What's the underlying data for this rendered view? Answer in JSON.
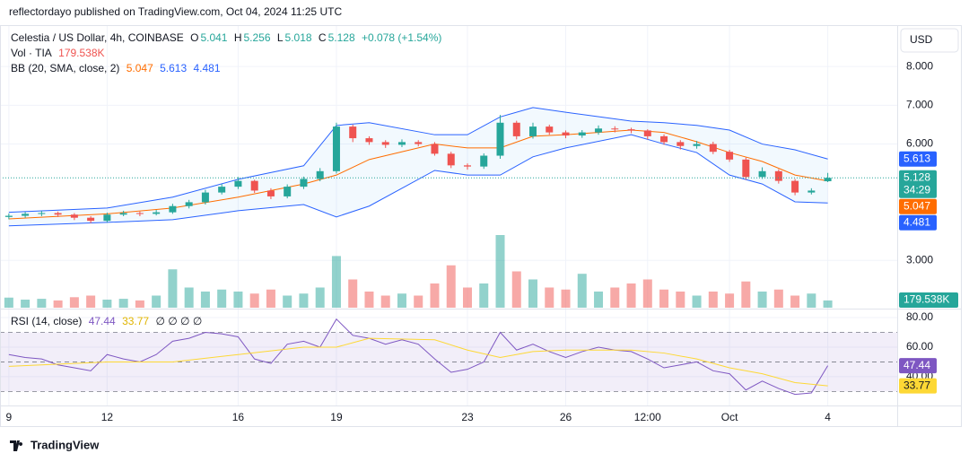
{
  "header": {
    "published": "reflectordayo published on TradingView.com, Oct 04, 2024 11:25 UTC",
    "currency": "USD"
  },
  "footer": {
    "brand": "TradingView"
  },
  "chart_data": {
    "type": "candlestick",
    "title": "Celestia / US Dollar, 4h, COINBASE",
    "ohlc_letters": [
      "O",
      "H",
      "L",
      "C"
    ],
    "change": "+0.078 (+1.54%)",
    "countdown": "34:29",
    "up_color": "#26a69a",
    "down_color": "#ef5350",
    "x": [
      0,
      0.5,
      1,
      1.5,
      2,
      2.5,
      3,
      3.5,
      4,
      4.5,
      5,
      5.5,
      6,
      6.5,
      7,
      7.5,
      8,
      8.5,
      9,
      9.5,
      10,
      10.5,
      11,
      11.5,
      12,
      12.5,
      13,
      13.5,
      14,
      14.5,
      15,
      15.5,
      16,
      16.5,
      17,
      17.5,
      18,
      18.5,
      19,
      19.5,
      20,
      20.5,
      21,
      21.5,
      22,
      22.5,
      23,
      23.5,
      24,
      24.5,
      25
    ],
    "open": [
      4.12,
      4.15,
      4.2,
      4.22,
      4.18,
      4.1,
      4.02,
      4.18,
      4.22,
      4.2,
      4.24,
      4.4,
      4.5,
      4.75,
      4.9,
      5.05,
      4.8,
      4.65,
      4.9,
      5.1,
      5.3,
      6.45,
      6.15,
      6.05,
      5.98,
      6.05,
      6.0,
      5.75,
      5.45,
      5.42,
      5.7,
      6.55,
      6.2,
      6.45,
      6.3,
      6.22,
      6.3,
      6.4,
      6.38,
      6.35,
      6.2,
      6.05,
      5.95,
      6.0,
      5.8,
      5.6,
      5.15,
      5.3,
      5.05,
      4.75,
      5.041
    ],
    "high": [
      4.21,
      4.25,
      4.28,
      4.26,
      4.22,
      4.14,
      4.23,
      4.28,
      4.26,
      4.3,
      4.46,
      4.56,
      4.82,
      4.97,
      5.15,
      5.08,
      4.86,
      4.96,
      5.16,
      5.38,
      6.55,
      6.5,
      6.2,
      6.1,
      6.12,
      6.1,
      6.05,
      5.8,
      5.5,
      5.76,
      6.75,
      6.6,
      6.55,
      6.5,
      6.35,
      6.36,
      6.48,
      6.46,
      6.42,
      6.38,
      6.25,
      6.1,
      6.08,
      6.06,
      5.85,
      5.65,
      5.4,
      5.35,
      5.1,
      4.86,
      5.256
    ],
    "low": [
      4.06,
      4.1,
      4.14,
      4.12,
      4.04,
      3.96,
      3.98,
      4.14,
      4.14,
      4.16,
      4.2,
      4.34,
      4.44,
      4.7,
      4.84,
      4.74,
      4.58,
      4.6,
      4.84,
      5.04,
      5.24,
      6.05,
      5.98,
      5.9,
      5.92,
      5.94,
      5.7,
      5.38,
      5.34,
      5.36,
      5.62,
      6.12,
      6.14,
      6.24,
      6.15,
      6.16,
      6.24,
      6.3,
      6.28,
      6.12,
      5.98,
      5.86,
      5.88,
      5.74,
      5.54,
      5.08,
      5.1,
      4.98,
      4.68,
      4.7,
      5.018
    ],
    "close": [
      4.15,
      4.2,
      4.22,
      4.18,
      4.1,
      4.02,
      4.18,
      4.22,
      4.2,
      4.24,
      4.4,
      4.5,
      4.75,
      4.9,
      5.05,
      4.8,
      4.65,
      4.9,
      5.1,
      5.3,
      6.45,
      6.15,
      6.05,
      5.98,
      6.05,
      6.0,
      5.75,
      5.45,
      5.42,
      5.7,
      6.55,
      6.2,
      6.45,
      6.3,
      6.22,
      6.3,
      6.4,
      6.38,
      6.35,
      6.2,
      6.05,
      5.95,
      6.0,
      5.8,
      5.6,
      5.15,
      5.3,
      5.05,
      4.75,
      4.8,
      5.128
    ],
    "xlim": [
      -0.27,
      27.12
    ],
    "xticks": [
      {
        "value": 0,
        "label": "9"
      },
      {
        "value": 3,
        "label": "12"
      },
      {
        "value": 7,
        "label": "16"
      },
      {
        "value": 10,
        "label": "19"
      },
      {
        "value": 14,
        "label": "23"
      },
      {
        "value": 17,
        "label": "26"
      },
      {
        "value": 19.5,
        "label": "12:00"
      },
      {
        "value": 22,
        "label": "Oct"
      },
      {
        "value": 25,
        "label": "4"
      }
    ],
    "ylim": [
      1.78,
      9.02
    ],
    "yticks": [
      {
        "value": 8,
        "label": "8.000"
      },
      {
        "value": 7,
        "label": "7.000"
      },
      {
        "value": 6,
        "label": "6.000"
      },
      {
        "value": 3,
        "label": "3.000"
      }
    ],
    "grid": true,
    "bb": {
      "label": "BB (20, SMA, close, 2)",
      "fill": "rgba(33,150,243,0.06)",
      "x": [
        0,
        3,
        5,
        7,
        9,
        10,
        11,
        13,
        14,
        15,
        16,
        17,
        19,
        20,
        21,
        22,
        23,
        24,
        25
      ],
      "series": [
        {
          "color": "#ff6d00",
          "values": [
            4.07,
            4.2,
            4.35,
            4.63,
            4.97,
            5.2,
            5.6,
            6.0,
            5.9,
            5.9,
            6.2,
            6.24,
            6.36,
            6.3,
            6.06,
            5.78,
            5.55,
            5.2,
            5.047
          ]
        },
        {
          "color": "#2962ff",
          "values": [
            4.24,
            4.35,
            4.63,
            5.09,
            5.44,
            6.48,
            6.55,
            6.24,
            6.24,
            6.7,
            6.94,
            6.82,
            6.59,
            6.55,
            6.48,
            6.36,
            6.0,
            5.85,
            5.613
          ]
        },
        {
          "color": "#2962ff",
          "values": [
            3.89,
            3.98,
            4.05,
            4.28,
            4.44,
            4.12,
            4.4,
            5.32,
            5.2,
            5.2,
            5.67,
            5.9,
            6.24,
            6.0,
            5.78,
            5.2,
            4.97,
            4.51,
            4.481
          ]
        }
      ]
    },
    "volume": {
      "label": "Vol · TIA",
      "vlim": [
        0,
        4000
      ],
      "last_value_label": "179.538K",
      "values": [
        250,
        200,
        220,
        180,
        260,
        300,
        200,
        220,
        180,
        300,
        950,
        500,
        400,
        450,
        400,
        350,
        450,
        300,
        350,
        500,
        1280,
        700,
        400,
        300,
        350,
        300,
        600,
        1050,
        500,
        600,
        1800,
        900,
        700,
        500,
        450,
        840,
        400,
        500,
        600,
        700,
        450,
        400,
        300,
        400,
        350,
        650,
        400,
        450,
        300,
        350,
        179.538
      ]
    },
    "rsi": {
      "label": "RSI (14, close)",
      "extra": "∅ ∅ ∅ ∅",
      "ylim": [
        20.5,
        85.5
      ],
      "yticks": [
        {
          "value": 80,
          "label": "80.00"
        },
        {
          "value": 60,
          "label": "60.00"
        },
        {
          "value": 40,
          "label": "40.00"
        }
      ],
      "levels": [
        70,
        50,
        30
      ],
      "color": "#7e57c2",
      "values": [
        55,
        53,
        52,
        48,
        46,
        44,
        55,
        52,
        50,
        55,
        64,
        66,
        70,
        69,
        67,
        52,
        49,
        62,
        64,
        60,
        79,
        68,
        66,
        62,
        65,
        62,
        52,
        43,
        45,
        50,
        70,
        58,
        62,
        57,
        53,
        57,
        60,
        58,
        57,
        52,
        46,
        48,
        50,
        44,
        42,
        31,
        37,
        32,
        28,
        29,
        47.44
      ],
      "ma": {
        "color": "#fdd835",
        "x": [
          0,
          3,
          5,
          7,
          9,
          10,
          11,
          13,
          14,
          15,
          16,
          17,
          19,
          20,
          21,
          22,
          23,
          24,
          25
        ],
        "values": [
          47,
          50,
          50,
          55,
          60,
          60,
          66,
          65,
          58,
          53,
          57,
          58,
          58,
          56,
          52,
          46,
          42,
          36,
          33.77
        ]
      }
    }
  }
}
